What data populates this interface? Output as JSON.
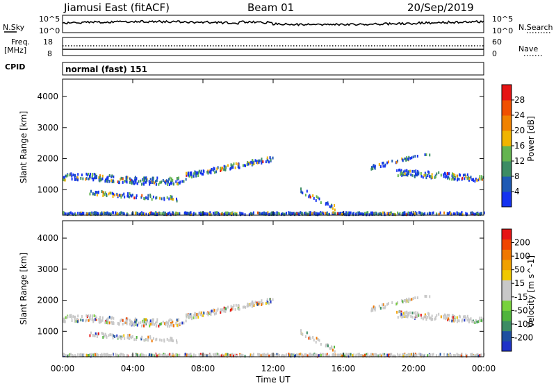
{
  "header": {
    "station": "Jiamusi East (fitACF)",
    "beam": "Beam 01",
    "date": "20/Sep/2019"
  },
  "noise_panel": {
    "left_label": "N.Sky",
    "right_label": "N.Search",
    "left_ticks": [
      "10^5",
      "10^0"
    ],
    "right_ticks": [
      "10^5",
      "10^0"
    ]
  },
  "freq_panel": {
    "left_label_line1": "Freq.",
    "left_label_line2": "[MHz]",
    "right_label": "Nave",
    "left_ticks": [
      "18",
      "8"
    ],
    "right_ticks": [
      "60",
      "0"
    ]
  },
  "cpid": {
    "label": "CPID",
    "value": "normal (fast) 151"
  },
  "chart_data": [
    {
      "type": "heatmap",
      "parameter": "Power",
      "ylabel": "Slant Range [km]",
      "ylim": [
        180,
        4560
      ],
      "yticks": [
        "1000",
        "2000",
        "3000",
        "4000"
      ],
      "colorbar": {
        "label": "Power [dB]",
        "ticks": [
          "4",
          "8",
          "12",
          "16",
          "20",
          "24",
          "28"
        ],
        "colors": [
          "#1432f0",
          "#1e5ab4",
          "#3c8c64",
          "#64b450",
          "#f0b400",
          "#f08200",
          "#f05000",
          "#e61414"
        ]
      },
      "echo_bands": [
        {
          "t_start": "00:00",
          "t_end": "07:00",
          "range_km": "1200-1600",
          "note": "main scatter band"
        },
        {
          "t_start": "07:00",
          "t_end": "12:00",
          "range_km": "1500-2100",
          "note": "rising band"
        },
        {
          "t_start": "19:00",
          "t_end": "24:00",
          "range_km": "1200-1600",
          "note": "evening band"
        },
        {
          "t_start": "00:00",
          "t_end": "24:00",
          "range_km": "200-300",
          "note": "near-range ground scatter"
        }
      ]
    },
    {
      "type": "heatmap",
      "parameter": "Velocity",
      "ylabel": "Slant Range [km]",
      "ylim": [
        180,
        4560
      ],
      "yticks": [
        "1000",
        "2000",
        "3000",
        "4000"
      ],
      "colorbar": {
        "label": "Velocity [m s^-1]",
        "ticks": [
          "200",
          "100",
          "50",
          "15",
          "-15",
          "-50",
          "-100",
          "-200"
        ],
        "colors": [
          "#1e32c8",
          "#1e50a0",
          "#3c8c64",
          "#50b43c",
          "#78d23c",
          "#c8c8c8",
          "#c8c8c8",
          "#f0c800",
          "#f0a000",
          "#f07800",
          "#f04600",
          "#e61414"
        ]
      }
    }
  ],
  "xaxis": {
    "label": "Time UT",
    "ticks": [
      "00:00",
      "04:00",
      "08:00",
      "12:00",
      "16:00",
      "20:00",
      "00:00"
    ]
  }
}
